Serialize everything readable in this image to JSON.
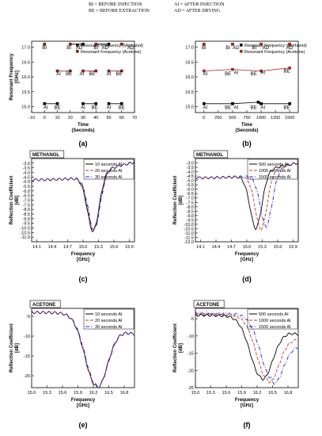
{
  "header_lines": [
    {
      "left": "BI = BEFORE INJECTION",
      "right": "AI = AFTER INJECTION"
    },
    {
      "left": "BE = BEFORE EXTRACTION",
      "right": "AD = AFTER DRYING"
    }
  ],
  "chart_data": [
    {
      "id": "a",
      "panel_label": "(a)",
      "type": "scatter",
      "xlabel": "Time\n(Seconds)",
      "ylabel": "Resonant Frequency\n[GHz]",
      "xlim": [
        -10,
        70
      ],
      "ylim": [
        14.8,
        17.2
      ],
      "xticks": [
        -10,
        0,
        10,
        20,
        30,
        40,
        50,
        60,
        70
      ],
      "yticks": [
        15.0,
        15.5,
        16.0,
        16.5,
        17.0
      ],
      "legend_position": "top-right",
      "series": [
        {
          "name": "Resonant Frequency (Methanol)",
          "color": "#000000",
          "segments": [
            [
              {
                "x": 0,
                "y": 15.1
              },
              {
                "x": 10,
                "y": 15.1
              }
            ],
            [
              {
                "x": 30,
                "y": 15.1
              },
              {
                "x": 40,
                "y": 15.1
              }
            ],
            [
              {
                "x": 50,
                "y": 15.1
              },
              {
                "x": 60,
                "y": 15.1
              }
            ],
            [
              {
                "x": 0,
                "y": 17.1
              }
            ],
            [
              {
                "x": 20,
                "y": 17.1
              },
              {
                "x": 30,
                "y": 17.1
              }
            ],
            [
              {
                "x": 40,
                "y": 17.1
              },
              {
                "x": 50,
                "y": 17.1
              }
            ],
            [
              {
                "x": 60,
                "y": 17.1
              }
            ]
          ]
        },
        {
          "name": "Resonant Frequency (Acetone)",
          "color": "#8b1a1a",
          "segments": [
            [
              {
                "x": 0,
                "y": 17.1
              }
            ],
            [
              {
                "x": 10,
                "y": 16.2
              },
              {
                "x": 20,
                "y": 16.2
              }
            ],
            [
              {
                "x": 30,
                "y": 16.2
              },
              {
                "x": 40,
                "y": 16.2
              }
            ],
            [
              {
                "x": 50,
                "y": 16.2
              },
              {
                "x": 60,
                "y": 16.2
              }
            ],
            [
              {
                "x": 20,
                "y": 17.1
              }
            ],
            [
              {
                "x": 40,
                "y": 17.1
              }
            ],
            [
              {
                "x": 60,
                "y": 17.1
              }
            ]
          ]
        }
      ],
      "annotations": [
        {
          "text": "BI",
          "x": 0,
          "y": 16.93
        },
        {
          "text": "BI",
          "x": 19,
          "y": 16.93
        },
        {
          "text": "AD",
          "x": 27,
          "y": 16.93
        },
        {
          "text": "BI",
          "x": 40,
          "y": 16.93
        },
        {
          "text": "AD",
          "x": 47,
          "y": 16.93
        },
        {
          "text": "AD",
          "x": 67,
          "y": 16.93
        },
        {
          "text": "AI",
          "x": 11,
          "y": 16.05
        },
        {
          "text": "BE",
          "x": 19,
          "y": 16.05
        },
        {
          "text": "AI",
          "x": 29,
          "y": 16.05
        },
        {
          "text": "BE",
          "x": 37,
          "y": 16.05
        },
        {
          "text": "AI",
          "x": 50,
          "y": 16.05
        },
        {
          "text": "BE",
          "x": 58,
          "y": 16.05
        },
        {
          "text": "AI",
          "x": 1,
          "y": 14.92
        },
        {
          "text": "BE",
          "x": 10,
          "y": 14.92
        },
        {
          "text": "AI",
          "x": 30,
          "y": 14.92
        },
        {
          "text": "BE",
          "x": 39,
          "y": 14.92
        },
        {
          "text": "AI",
          "x": 50,
          "y": 14.92
        },
        {
          "text": "BE",
          "x": 60,
          "y": 14.92
        }
      ]
    },
    {
      "id": "b",
      "panel_label": "(b)",
      "type": "scatter",
      "xlabel": "Time\n(Seconds)",
      "ylabel": "",
      "xlim": [
        -150,
        1650
      ],
      "ylim": [
        14.8,
        17.2
      ],
      "xticks": [
        0,
        250,
        500,
        750,
        1000,
        1250,
        1500
      ],
      "yticks": [
        15.0,
        15.5,
        16.0,
        16.5,
        17.0
      ],
      "legend_position": "top-right",
      "series": [
        {
          "name": "Resonant Frequency (Methanol)",
          "color": "#000000",
          "segments": [
            [
              {
                "x": 0,
                "y": 15.1
              },
              {
                "x": 500,
                "y": 15.1
              }
            ],
            [
              {
                "x": 500,
                "y": 15.1
              },
              {
                "x": 950,
                "y": 15.15
              },
              {
                "x": 1000,
                "y": 15.1
              }
            ],
            [
              {
                "x": 1000,
                "y": 15.1
              },
              {
                "x": 1500,
                "y": 15.1
              }
            ],
            [
              {
                "x": 0,
                "y": 17.1
              }
            ],
            [
              {
                "x": 500,
                "y": 17.1
              }
            ],
            [
              {
                "x": 1000,
                "y": 17.1
              }
            ],
            [
              {
                "x": 1500,
                "y": 17.1
              }
            ]
          ]
        },
        {
          "name": "Resonant Frequency (Acetone)",
          "color": "#b22222",
          "segments": [
            [
              {
                "x": 0,
                "y": 16.2
              },
              {
                "x": 500,
                "y": 16.25
              },
              {
                "x": 1000,
                "y": 16.2
              },
              {
                "x": 1500,
                "y": 16.3
              }
            ],
            [
              {
                "x": 0,
                "y": 17.1
              }
            ],
            [
              {
                "x": 500,
                "y": 17.1
              }
            ],
            [
              {
                "x": 1000,
                "y": 17.1
              }
            ],
            [
              {
                "x": 1500,
                "y": 17.1
              }
            ]
          ]
        }
      ],
      "annotations": [
        {
          "text": "BI",
          "x": 0,
          "y": 16.93
        },
        {
          "text": "BI",
          "x": 420,
          "y": 16.93
        },
        {
          "text": "AD",
          "x": 560,
          "y": 16.93
        },
        {
          "text": "BI",
          "x": 880,
          "y": 16.93
        },
        {
          "text": "AD",
          "x": 1080,
          "y": 16.93
        },
        {
          "text": "AD",
          "x": 1500,
          "y": 16.93
        },
        {
          "text": "AI",
          "x": 20,
          "y": 16.05
        },
        {
          "text": "BE",
          "x": 420,
          "y": 16.05
        },
        {
          "text": "AI",
          "x": 560,
          "y": 16.1
        },
        {
          "text": "BE",
          "x": 870,
          "y": 16.05
        },
        {
          "text": "AI",
          "x": 1030,
          "y": 16.1
        },
        {
          "text": "BE",
          "x": 1450,
          "y": 16.15
        },
        {
          "text": "AI",
          "x": 20,
          "y": 14.92
        },
        {
          "text": "BE",
          "x": 420,
          "y": 14.92
        },
        {
          "text": "AI",
          "x": 560,
          "y": 14.92
        },
        {
          "text": "BE",
          "x": 870,
          "y": 14.92
        },
        {
          "text": "AI",
          "x": 1030,
          "y": 14.92
        },
        {
          "text": "BE",
          "x": 1450,
          "y": 14.92
        }
      ]
    },
    {
      "id": "c",
      "panel_label": "(c)",
      "type": "line",
      "tag": "METHANOL",
      "xlabel": "Frequency\n[GHz]",
      "ylabel": "Reflection Coefficient\n[dB]",
      "xlim": [
        14.0,
        16.0
      ],
      "ylim": [
        -11.5,
        -2.5
      ],
      "xticks": [
        14.1,
        14.4,
        14.7,
        15.0,
        15.3,
        15.6,
        15.9
      ],
      "yticks": [
        -3.0,
        -3.5,
        -4.0,
        -4.5,
        -5.0,
        -5.5,
        -6.0,
        -6.5,
        -7.0,
        -7.5,
        -8.0,
        -8.5,
        -9.0,
        -9.5,
        -10.0,
        -10.5,
        -11.0
      ],
      "legend_position": "top-right",
      "series": [
        {
          "name": "10 seconds AI",
          "color": "#000000",
          "dash": "",
          "dip_x": 15.2,
          "dip_y": -10.4,
          "start_y": -4.8,
          "end_y": -2.9
        },
        {
          "name": "20 seconds AI",
          "color": "#c0392b",
          "dash": "4,2",
          "dip_x": 15.21,
          "dip_y": -10.35,
          "start_y": -4.8,
          "end_y": -2.9
        },
        {
          "name": "30 seconds AI",
          "color": "#2222cc",
          "dash": "5,2,1,2",
          "dip_x": 15.22,
          "dip_y": -10.3,
          "start_y": -4.8,
          "end_y": -2.9
        }
      ]
    },
    {
      "id": "d",
      "panel_label": "(d)",
      "type": "line",
      "tag": "METHANOL",
      "xlabel": "Frequency\n[GHz]",
      "ylabel": "Reflection Coefficient\n[dB]",
      "xlim": [
        14.0,
        16.0
      ],
      "ylim": [
        -12.0,
        -2.5
      ],
      "xticks": [
        14.1,
        14.4,
        14.7,
        15.0,
        15.3,
        15.6,
        15.9
      ],
      "yticks": [
        -3.0,
        -3.5,
        -4.0,
        -4.5,
        -5.0,
        -5.5,
        -6.0,
        -6.5,
        -7.0,
        -7.5,
        -8.0,
        -8.5,
        -9.0,
        -9.5,
        -10.0,
        -10.5,
        -11.0,
        -11.5,
        -12.0
      ],
      "legend_position": "top-right",
      "series": [
        {
          "name": "500 seconds AI",
          "color": "#000000",
          "dash": "",
          "dip_x": 15.18,
          "dip_y": -10.5,
          "start_y": -4.7,
          "end_y": -3.0
        },
        {
          "name": "1000 seconds AI",
          "color": "#c0392b",
          "dash": "4,2",
          "dip_x": 15.28,
          "dip_y": -10.6,
          "start_y": -4.7,
          "end_y": -3.0
        },
        {
          "name": "1500 seconds AI",
          "color": "#2222cc",
          "dash": "5,2,1,2",
          "dip_x": 15.38,
          "dip_y": -10.3,
          "start_y": -4.7,
          "end_y": -3.0
        }
      ]
    },
    {
      "id": "e",
      "panel_label": "(e)",
      "type": "line",
      "tag": "ACETONE",
      "xlabel": "Frequency\n[GHz]",
      "ylabel": "Reflection Coefficient\n[dB]",
      "xlim": [
        15.0,
        17.0
      ],
      "ylim": [
        -23,
        -3
      ],
      "xticks": [
        15.0,
        15.3,
        15.6,
        15.9,
        16.2,
        16.5,
        16.8
      ],
      "yticks": [
        -5,
        -10,
        -15,
        -20
      ],
      "legend_position": "top-right",
      "series": [
        {
          "name": "10 seconds AI",
          "color": "#000000",
          "dash": "",
          "dip_x": 16.25,
          "dip_y": -22.5,
          "start_y": -4.0,
          "end_y": -9.5
        },
        {
          "name": "20 seconds AI",
          "color": "#c0392b",
          "dash": "4,2",
          "dip_x": 16.25,
          "dip_y": -22.4,
          "start_y": -4.0,
          "end_y": -9.5
        },
        {
          "name": "30 seconds AI",
          "color": "#2222cc",
          "dash": "5,2,1,2",
          "dip_x": 16.26,
          "dip_y": -22.3,
          "start_y": -4.0,
          "end_y": -9.5
        }
      ]
    },
    {
      "id": "f",
      "panel_label": "(f)",
      "type": "line",
      "tag": "ACETONE",
      "xlabel": "Frequency\n[GHz]",
      "ylabel": "Reflection Coefficient\n[dB]",
      "xlim": [
        15.0,
        17.0
      ],
      "ylim": [
        -25,
        -2
      ],
      "xticks": [
        15.0,
        15.3,
        15.6,
        15.9,
        16.2,
        16.5,
        16.8
      ],
      "yticks": [
        -5,
        -10,
        -15,
        -20,
        -25
      ],
      "legend_position": "top-right",
      "series": [
        {
          "name": "500 seconds AI",
          "color": "#000000",
          "dash": "",
          "dip_x": 16.28,
          "dip_y": -22.0,
          "start_y": -4.0,
          "end_y": -9.5
        },
        {
          "name": "1000 seconds AI",
          "color": "#c0392b",
          "dash": "4,2",
          "dip_x": 16.4,
          "dip_y": -22.5,
          "start_y": -3.7,
          "end_y": -11.0
        },
        {
          "name": "1500 seconds AI",
          "color": "#2222cc",
          "dash": "5,2,1,2",
          "dip_x": 16.48,
          "dip_y": -22.3,
          "start_y": -3.3,
          "end_y": -12.5
        }
      ]
    }
  ]
}
